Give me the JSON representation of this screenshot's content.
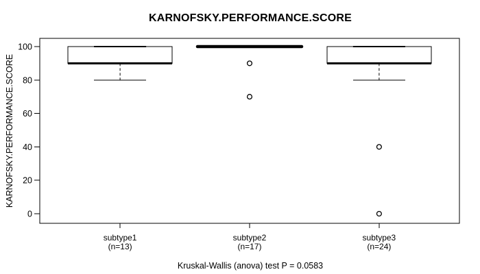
{
  "chart_data": {
    "type": "boxplot",
    "title": "KARNOFSKY.PERFORMANCE.SCORE",
    "ylabel": "KARNOFSKY.PERFORMANCE.SCORE",
    "xlabel": "",
    "ylim": [
      0,
      100
    ],
    "yticks": [
      0,
      20,
      40,
      60,
      80,
      100
    ],
    "grid": false,
    "categories": [
      "subtype1",
      "subtype2",
      "subtype3"
    ],
    "groups": [
      {
        "label": "subtype1",
        "n_label": "(n=13)",
        "n": 13,
        "stats": {
          "whisker_low": 80,
          "q1": 90,
          "median": 90,
          "q3": 100,
          "whisker_high": 100
        },
        "outliers": []
      },
      {
        "label": "subtype2",
        "n_label": "(n=17)",
        "n": 17,
        "stats": {
          "whisker_low": 100,
          "q1": 100,
          "median": 100,
          "q3": 100,
          "whisker_high": 100
        },
        "outliers": [
          90,
          70
        ]
      },
      {
        "label": "subtype3",
        "n_label": "(n=24)",
        "n": 24,
        "stats": {
          "whisker_low": 80,
          "q1": 90,
          "median": 90,
          "q3": 100,
          "whisker_high": 100
        },
        "outliers": [
          40,
          0
        ]
      }
    ],
    "annotation": "Kruskal-Wallis (anova) test P = 0.0583",
    "colors": {
      "line": "#000000",
      "box_fill": "#ffffff",
      "background": "#ffffff"
    }
  }
}
